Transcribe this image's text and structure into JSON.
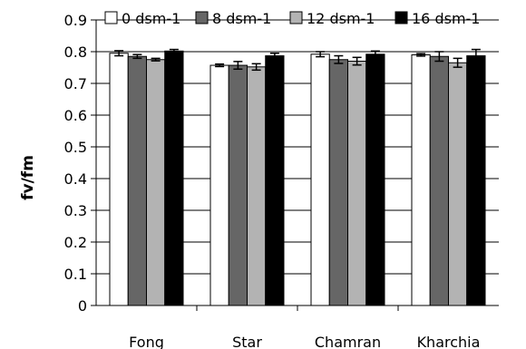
{
  "chart_data": {
    "type": "bar",
    "title": "",
    "xlabel": "",
    "ylabel": "fv/fm",
    "ylim": [
      0,
      0.9
    ],
    "yticks": [
      0,
      0.1,
      0.2,
      0.3,
      0.4,
      0.5,
      0.6,
      0.7,
      0.8,
      0.9
    ],
    "ytick_labels": [
      "0",
      "0.1",
      "0.2",
      "0.3",
      "0.4",
      "0.5",
      "0.6",
      "0.7",
      "0.8",
      "0.9"
    ],
    "grid": true,
    "legend_position": "top",
    "categories": [
      "Fong",
      "Star",
      "Chamran",
      "Kharchia"
    ],
    "series": [
      {
        "name": "0 dsm-1",
        "color": "#ffffff",
        "values": [
          0.795,
          0.757,
          0.792,
          0.79
        ],
        "errors": [
          0.008,
          0.004,
          0.008,
          0.004
        ]
      },
      {
        "name": "8 dsm-1",
        "color": "#666666",
        "values": [
          0.785,
          0.757,
          0.775,
          0.785
        ],
        "errors": [
          0.006,
          0.012,
          0.012,
          0.015
        ]
      },
      {
        "name": "12 dsm-1",
        "color": "#b3b3b3",
        "values": [
          0.775,
          0.752,
          0.77,
          0.765
        ],
        "errors": [
          0.004,
          0.01,
          0.012,
          0.014
        ]
      },
      {
        "name": "16 dsm-1",
        "color": "#000000",
        "values": [
          0.802,
          0.787,
          0.792,
          0.787
        ],
        "errors": [
          0.005,
          0.008,
          0.01,
          0.02
        ]
      }
    ]
  }
}
